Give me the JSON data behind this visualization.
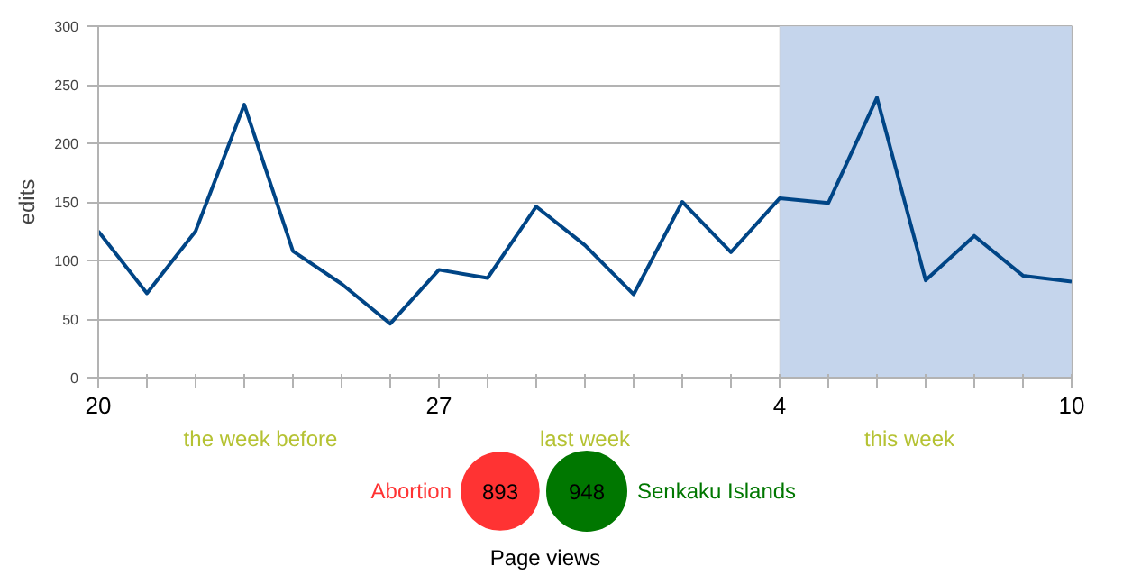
{
  "chart_data": [
    {
      "type": "line",
      "ylabel": "edits",
      "categories": [
        "20",
        null,
        null,
        null,
        null,
        null,
        null,
        "27",
        null,
        null,
        null,
        null,
        null,
        null,
        "4",
        null,
        null,
        null,
        null,
        null,
        "10"
      ],
      "series": [
        {
          "color": "#004586",
          "values": [
            125,
            72,
            125,
            233,
            108,
            80,
            46,
            92,
            85,
            146,
            113,
            71,
            150,
            107,
            153,
            149,
            239,
            83,
            121,
            87,
            82
          ]
        }
      ],
      "ylim": [
        0,
        300
      ],
      "yticks": [
        0,
        50,
        100,
        150,
        200,
        250,
        300
      ],
      "grid": "y",
      "marker": "none",
      "line_style": "solid",
      "bands": [
        {
          "axis": "x",
          "from": "4",
          "to": "10",
          "color": "#c5d5ec"
        }
      ],
      "annotations": [
        "the week before",
        "last week",
        "this week"
      ]
    },
    {
      "type": "other",
      "title": "Page views",
      "categories": [
        "Abortion",
        "Senkaku Islands"
      ],
      "values": [
        893,
        948
      ],
      "colors": [
        "#ff3333",
        "#007700"
      ],
      "data_labels": true
    }
  ]
}
